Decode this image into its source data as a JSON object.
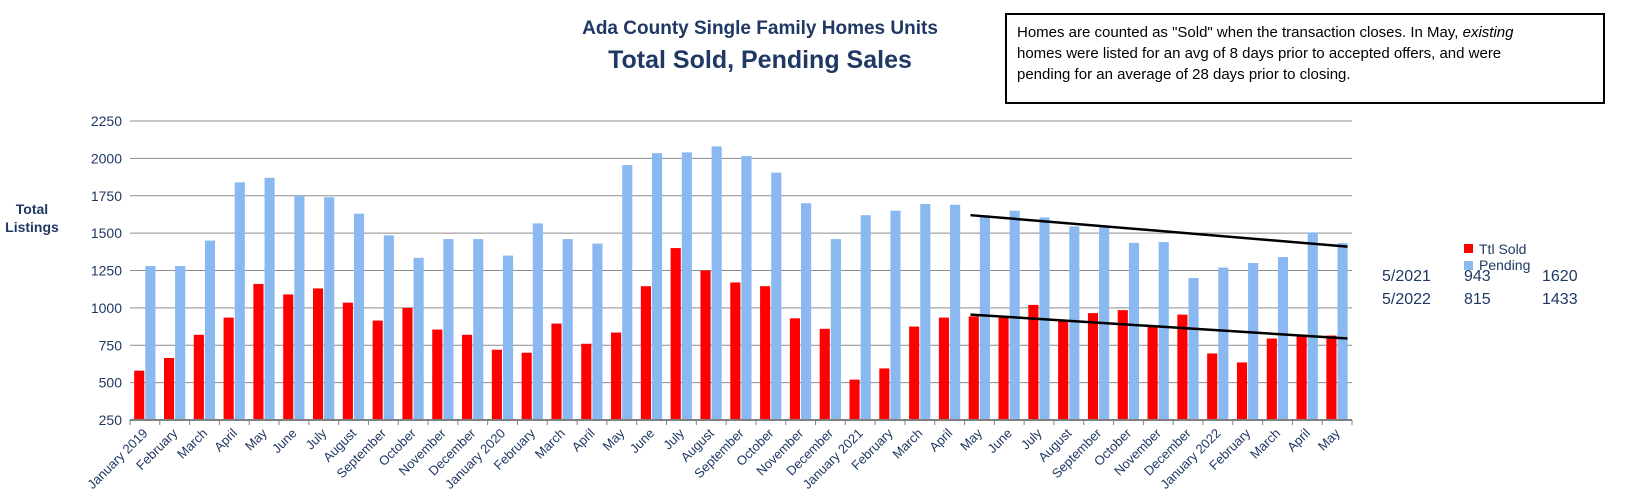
{
  "chart_data": {
    "type": "bar",
    "title": "Ada County  Single Family Homes Units",
    "subtitle": "Total Sold, Pending Sales",
    "ylabel": "Total Listings",
    "ylim": [
      250,
      2250
    ],
    "yticks": [
      250,
      500,
      750,
      1000,
      1250,
      1500,
      1750,
      2000,
      2250
    ],
    "grid": true,
    "legend_position": "right",
    "categories": [
      "January  2019",
      "February",
      "March",
      "April",
      "May",
      "June",
      "July",
      "August",
      "September",
      "October",
      "November",
      "December",
      "January  2020",
      "February",
      "March",
      "April",
      "May",
      "June",
      "July",
      "August",
      "September",
      "October",
      "November",
      "December",
      "January 2021",
      "February",
      "March",
      "April",
      "May",
      "June",
      "July",
      "August",
      "September",
      "October",
      "November",
      "December",
      "January 2022",
      "February",
      "March",
      "April",
      "May"
    ],
    "series": [
      {
        "name": "Ttl Sold",
        "color": "#ff0000",
        "values": [
          580,
          665,
          820,
          935,
          1160,
          1090,
          1130,
          1035,
          915,
          1000,
          855,
          820,
          720,
          700,
          895,
          760,
          835,
          1145,
          1400,
          1250,
          1170,
          1145,
          930,
          860,
          520,
          595,
          875,
          935,
          943,
          935,
          1020,
          910,
          965,
          985,
          880,
          955,
          695,
          635,
          795,
          820,
          815
        ]
      },
      {
        "name": "Pending",
        "color": "#8ab9f1",
        "values": [
          1280,
          1280,
          1450,
          1840,
          1870,
          1750,
          1740,
          1630,
          1485,
          1335,
          1460,
          1460,
          1350,
          1565,
          1460,
          1430,
          1955,
          2035,
          2040,
          2080,
          2015,
          1905,
          1700,
          1460,
          1620,
          1650,
          1695,
          1690,
          1620,
          1650,
          1605,
          1545,
          1540,
          1435,
          1440,
          1200,
          1270,
          1300,
          1340,
          1505,
          1433
        ]
      }
    ],
    "trendlines": [
      {
        "series": "Pending",
        "from_category": "May",
        "from_index": 28,
        "to_index": 40,
        "from_value": 1620,
        "to_value": 1410
      },
      {
        "series": "Ttl Sold",
        "from_category": "May",
        "from_index": 28,
        "to_index": 40,
        "from_value": 955,
        "to_value": 795
      }
    ]
  },
  "note": {
    "line1_a": "Homes are counted as \"Sold\" when the transaction closes.  In May, ",
    "line1_italic": "existing",
    "line2": "homes were listed for an avg of 8 days prior to accepted offers, and were",
    "line3": "pending  for an average of 28 days prior to closing."
  },
  "legend": {
    "sold_label": "Ttl Sold",
    "pending_label": "Pending",
    "sold_color": "#ff0000",
    "pending_color": "#8ab9f1"
  },
  "stats": [
    {
      "period": "5/2021",
      "sold": "943",
      "pending": "1620"
    },
    {
      "period": "5/2022",
      "sold": "815",
      "pending": "1433"
    }
  ]
}
